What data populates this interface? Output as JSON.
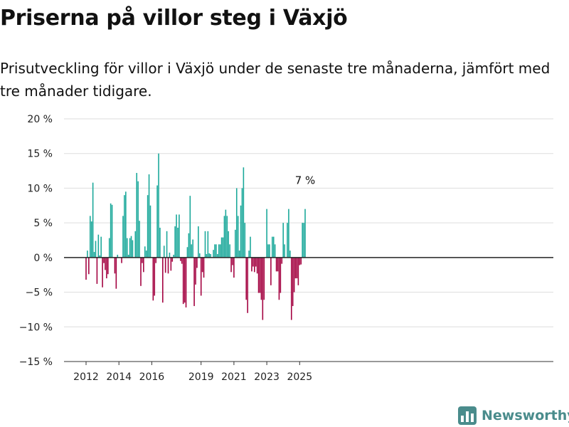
{
  "header": {
    "title": "Priserna på villor steg i Växjö",
    "subtitle": "Prisutveckling för villor i Växjö under de senaste tre månaderna, jämfört med tre månader tidigare."
  },
  "brand": {
    "name": "Newsworthy",
    "icon": "newsworthy-logo-icon"
  },
  "colors": {
    "positive": "#1aa89a",
    "negative": "#a3003f",
    "grid": "#dddddd",
    "zero_line": "#222222"
  },
  "chart_data": {
    "type": "bar",
    "title": "Priserna på villor steg i Växjö",
    "xlabel": "",
    "ylabel": "",
    "ylim": [
      -15,
      20
    ],
    "y_ticks": [
      20,
      15,
      10,
      5,
      0,
      -5,
      -10,
      -15
    ],
    "y_tick_labels": [
      "20 %",
      "15 %",
      "10 %",
      "5 %",
      "0 %",
      "−5 %",
      "−10 %",
      "−15 %"
    ],
    "x_ticks": [
      2012,
      2014,
      2016,
      2019,
      2021,
      2023,
      2025
    ],
    "x_tick_labels": [
      "2012",
      "2014",
      "2016",
      "2019",
      "2021",
      "2023",
      "2025"
    ],
    "grid": true,
    "period": "monthly",
    "start": "2012-01",
    "values": [
      -3.2,
      1,
      -2.4,
      6,
      5.2,
      10.8,
      0.8,
      2.4,
      -3.8,
      3.3,
      0.3,
      3,
      -4.3,
      -0.8,
      -1.8,
      -3,
      -2.4,
      2.8,
      7.8,
      7.6,
      0,
      -2.3,
      -4.5,
      0.4,
      0,
      0,
      -0.8,
      6,
      9,
      9.5,
      2.8,
      0.4,
      2.8,
      3.1,
      2.5,
      0,
      3.8,
      12.2,
      11,
      5.3,
      -4.1,
      -0.8,
      -2.1,
      1.6,
      1,
      9,
      12,
      7.5,
      0,
      -6.2,
      -5.5,
      -0.8,
      10.4,
      15,
      4.3,
      0,
      -6.5,
      1.7,
      -2.2,
      3.8,
      -2.3,
      0.7,
      -1.9,
      -0.6,
      0.4,
      4.5,
      6.2,
      4.3,
      6.2,
      -0.5,
      -0.9,
      -6.7,
      -6.5,
      -7.2,
      1.5,
      3.5,
      8.9,
      1.9,
      2.6,
      -7,
      -3.9,
      -1.5,
      4.5,
      0.6,
      -5.5,
      -2.1,
      -2.9,
      3.8,
      0.5,
      3.8,
      0.6,
      0.5,
      0,
      1.1,
      1.9,
      1.9,
      0.5,
      1.9,
      1.9,
      2.9,
      2.9,
      6,
      6.9,
      6,
      3.8,
      1.9,
      -2.1,
      -1.1,
      -2.9,
      4,
      10,
      6,
      1,
      7.5,
      10,
      13,
      5,
      -6.1,
      -8,
      1,
      3,
      -2,
      -1.3,
      -2.1,
      -1.3,
      -2.3,
      -5.1,
      -5.1,
      -6.1,
      -9,
      -6.1,
      0,
      7,
      1.9,
      1.9,
      -4,
      3,
      3,
      1.9,
      -2,
      -2,
      -6.1,
      -5.1,
      -0.9,
      5,
      1.9,
      0,
      5,
      7,
      1,
      -9,
      -7,
      -5,
      -3,
      -3,
      -4,
      -1.1,
      -1,
      5,
      5,
      7
    ],
    "annotations": [
      {
        "label": "7 %",
        "attached_to": "last_bar"
      }
    ]
  }
}
